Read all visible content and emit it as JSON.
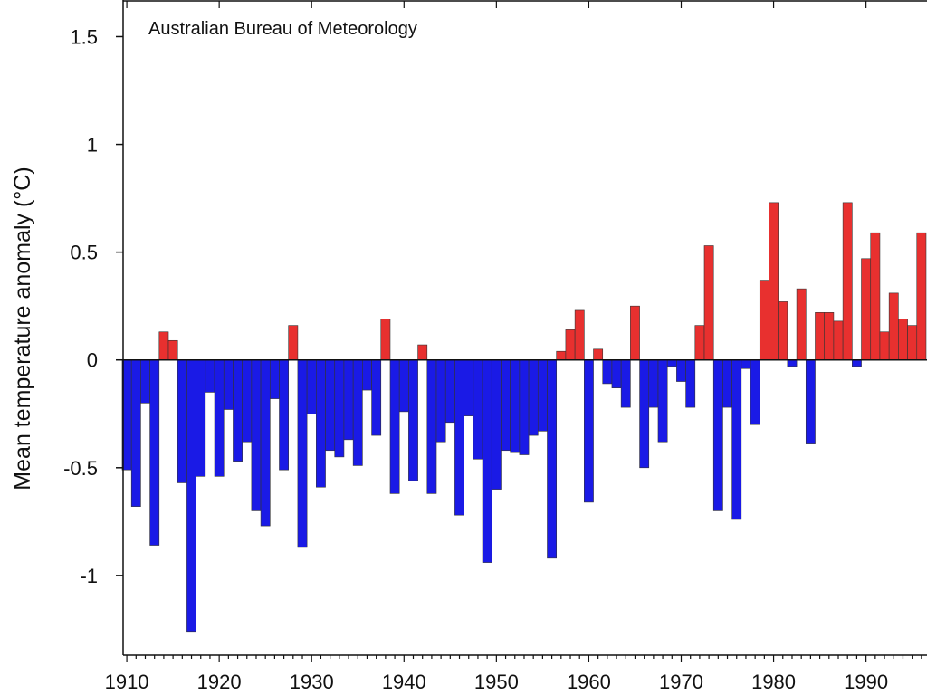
{
  "chart_data": {
    "type": "bar",
    "annotation": "Australian Bureau of Meteorology",
    "ylabel": "Mean temperature anomaly (°C)",
    "xlabel": "",
    "ylim": [
      -1.37,
      1.67
    ],
    "xlim": [
      1909.6,
      1996.6
    ],
    "y_ticks": [
      1.5,
      1,
      0.5,
      0,
      -0.5,
      -1
    ],
    "y_tick_labels": [
      "1.5",
      "1",
      "0.5",
      "0",
      "-0.5",
      "-1"
    ],
    "x_ticks": [
      1910,
      1920,
      1930,
      1940,
      1950,
      1960,
      1970,
      1980,
      1990
    ],
    "x_tick_labels": [
      "1910",
      "1920",
      "1930",
      "1940",
      "1950",
      "1960",
      "1970",
      "1980",
      "1990"
    ],
    "grid": false,
    "colors": {
      "positive": "#e8302f",
      "negative": "#1a1ae6",
      "edge": "#333333",
      "axis": "#111111"
    },
    "series": [
      {
        "years": [
          1910,
          1911,
          1912,
          1913,
          1914,
          1915,
          1916,
          1917,
          1918,
          1919,
          1920,
          1921,
          1922,
          1923,
          1924,
          1925,
          1926,
          1927,
          1928,
          1929,
          1930,
          1931,
          1932,
          1933,
          1934,
          1935,
          1936,
          1937,
          1938,
          1939,
          1940,
          1941,
          1942,
          1943,
          1944,
          1945,
          1946,
          1947,
          1948,
          1949,
          1950,
          1951,
          1952,
          1953,
          1954,
          1955,
          1956,
          1957,
          1958,
          1959,
          1960,
          1961,
          1962,
          1963,
          1964,
          1965,
          1966,
          1967,
          1968,
          1969,
          1970,
          1971,
          1972,
          1973,
          1974,
          1975,
          1976,
          1977,
          1978,
          1979,
          1980,
          1981,
          1982,
          1983,
          1984,
          1985,
          1986,
          1987,
          1988,
          1989,
          1990,
          1991,
          1992,
          1993,
          1994,
          1995,
          1996
        ],
        "values": [
          -0.51,
          -0.68,
          -0.2,
          -0.86,
          0.13,
          0.09,
          -0.57,
          -1.26,
          -0.54,
          -0.15,
          -0.54,
          -0.23,
          -0.47,
          -0.38,
          -0.7,
          -0.77,
          -0.18,
          -0.51,
          0.16,
          -0.87,
          -0.25,
          -0.59,
          -0.42,
          -0.45,
          -0.37,
          -0.49,
          -0.14,
          -0.35,
          0.19,
          -0.62,
          -0.24,
          -0.56,
          0.07,
          -0.62,
          -0.38,
          -0.29,
          -0.72,
          -0.26,
          -0.46,
          -0.94,
          -0.6,
          -0.42,
          -0.43,
          -0.44,
          -0.35,
          -0.33,
          -0.92,
          0.04,
          0.14,
          0.23,
          -0.66,
          0.05,
          -0.11,
          -0.13,
          -0.22,
          0.25,
          -0.5,
          -0.22,
          -0.38,
          -0.03,
          -0.1,
          -0.22,
          0.16,
          0.53,
          -0.7,
          -0.22,
          -0.74,
          -0.04,
          -0.3,
          0.37,
          0.73,
          0.27,
          -0.03,
          0.33,
          -0.39,
          0.22,
          0.22,
          0.18,
          0.73,
          -0.03,
          0.47,
          0.59,
          0.13,
          0.31,
          0.19,
          0.16,
          0.59
        ]
      }
    ]
  }
}
